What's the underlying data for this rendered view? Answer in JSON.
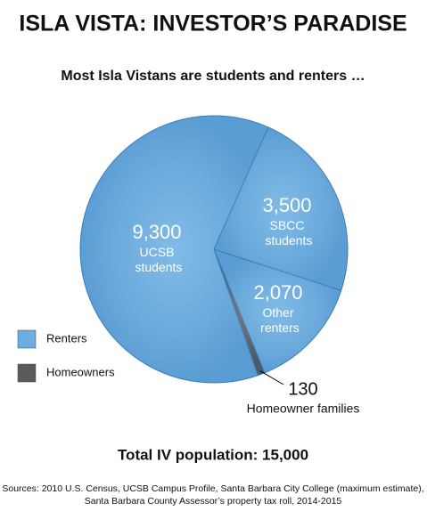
{
  "chart_data": {
    "type": "pie",
    "title": "ISLA VISTA: INVESTOR’S PARADISE",
    "subtitle": "Most Isla Vistans are students and renters …",
    "categories": [
      "UCSB students",
      "SBCC students",
      "Other renters",
      "Homeowner families"
    ],
    "values": [
      9300,
      3500,
      2070,
      130
    ],
    "value_labels": [
      "9,300",
      "3,500",
      "2,070",
      "130"
    ],
    "colors": [
      "#6aaee2",
      "#6aaee2",
      "#6aaee2",
      "#5a5a5a"
    ],
    "legend": [
      {
        "label": "Renters",
        "color": "#6aaee2"
      },
      {
        "label": "Homeowners",
        "color": "#5a5a5a"
      }
    ],
    "total_label": "Total IV population: 15,000",
    "sources": [
      "Sources: 2010 U.S. Census, UCSB Campus Profile,  Santa Barbara City College (maximum estimate),",
      "Santa Barbara County Assessor’s property tax roll, 2014-2015"
    ]
  }
}
